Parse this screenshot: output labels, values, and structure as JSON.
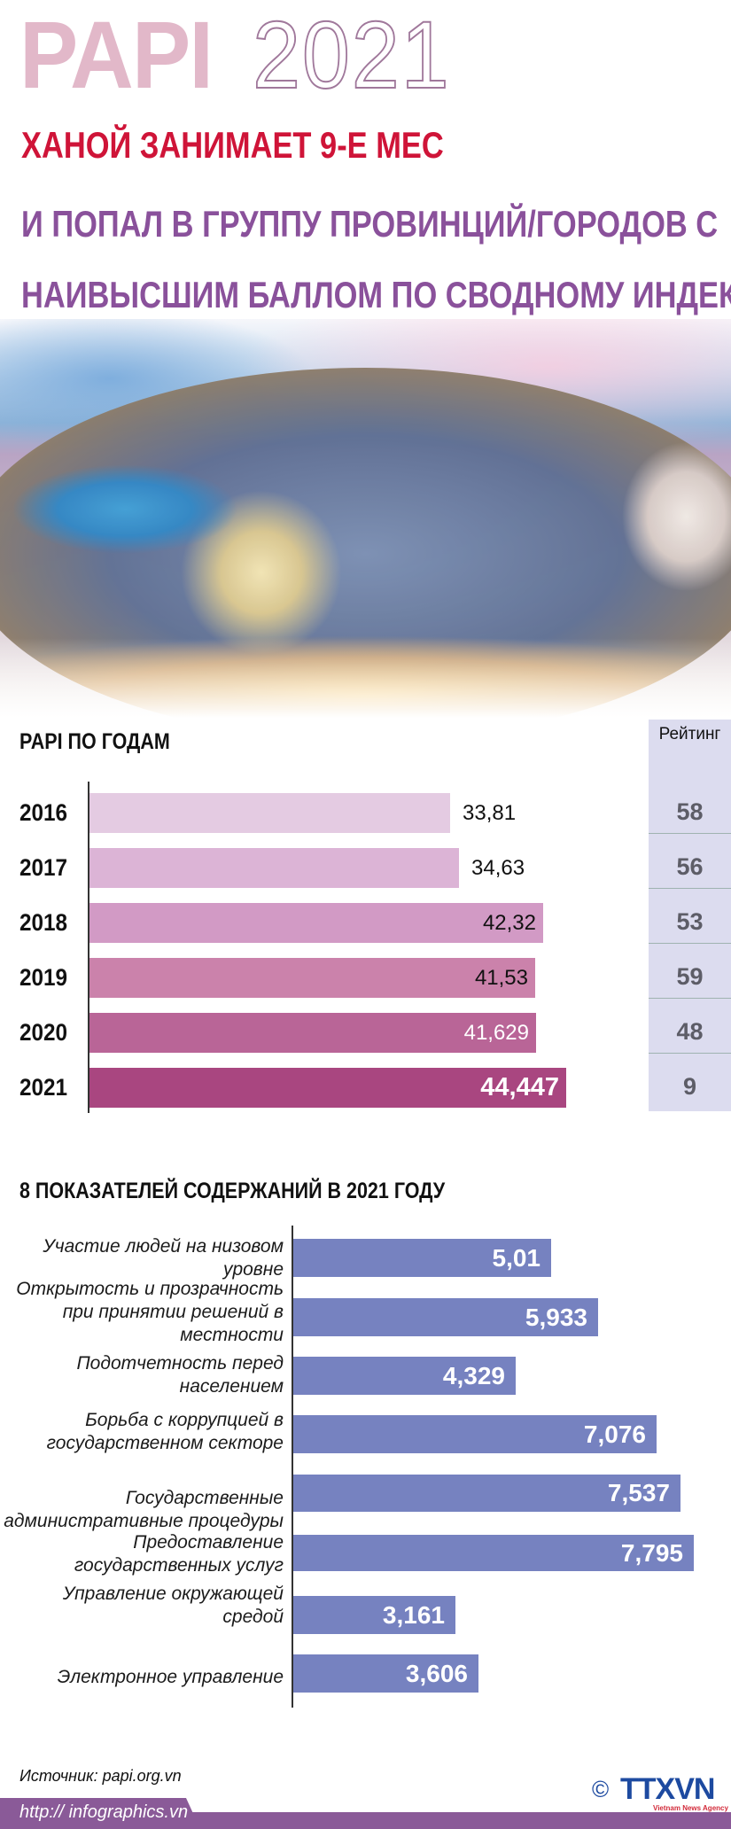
{
  "colors": {
    "papi_title": "#e2b8c9",
    "year_stroke": "#a0789b",
    "headline_red": "#cf1438",
    "headline_purple": "#8a519b",
    "chart2_bar": "#7682c0",
    "rating_bg": "#dcdcef",
    "footer": "#8a5a98"
  },
  "header": {
    "title_word": "PAPI",
    "title_year": "2021",
    "headline_line1": "ХАНОЙ ЗАНИМАЕТ 9-Е МЕС",
    "headline_line2": "И ПОПАЛ В ГРУППУ ПРОВИНЦИЙ/ГОРОДОВ С",
    "headline_line3": "НАИВЫСШИМ БАЛЛОМ ПО СВОДНОМУ ИНДЕКСУ"
  },
  "photo": {
    "description": "Aerial fisheye view of Hanoi city at dusk"
  },
  "chart1": {
    "title": "PAPI ПО ГОДАМ",
    "rating_header": "Рейтинг",
    "rows": [
      {
        "year": "2016",
        "value": "33,81",
        "rating": "58",
        "color": "#e4cbe2",
        "text_color": "#111111"
      },
      {
        "year": "2017",
        "value": "34,63",
        "rating": "56",
        "color": "#dcb4d6",
        "text_color": "#111111"
      },
      {
        "year": "2018",
        "value": "42,32",
        "rating": "53",
        "color": "#d29ac5",
        "text_color": "#111111"
      },
      {
        "year": "2019",
        "value": "41,53",
        "rating": "59",
        "color": "#cb82ab",
        "text_color": "#111111"
      },
      {
        "year": "2020",
        "value": "41,629",
        "rating": "48",
        "color": "#b96597",
        "text_color": "#ffffff"
      },
      {
        "year": "2021",
        "value": "44,447",
        "rating": "9",
        "color": "#a94680",
        "text_color": "#ffffff"
      }
    ]
  },
  "chart2": {
    "title": "8 ПОКАЗАТЕЛЕЙ СОДЕРЖАНИЙ В 2021 ГОДУ",
    "rows": [
      {
        "label": "Участие людей на низовом уровне",
        "value": "5,01"
      },
      {
        "label": "Открытость и прозрачность при принятии решений в местности",
        "value": "5,933"
      },
      {
        "label": "Подотчетность перед населением",
        "value": "4,329"
      },
      {
        "label": "Борьба с коррупцией в государственном секторе",
        "value": "7,076"
      },
      {
        "label": "Государственные административные процедуры",
        "value": "7,537"
      },
      {
        "label": "Предоставление государственных услуг",
        "value": "7,795"
      },
      {
        "label": "Управление окружающей средой",
        "value": "3,161"
      },
      {
        "label": "Электронное управление",
        "value": "3,606"
      }
    ]
  },
  "footer": {
    "source": "Источник: papi.org.vn",
    "url": "http:// infographics.vn",
    "copyright": "©",
    "logo": "TTXVN",
    "logo_sub": "Vietnam News Agency"
  },
  "chart_data": [
    {
      "type": "bar",
      "orientation": "horizontal",
      "title": "PAPI ПО ГОДАМ",
      "categories": [
        "2016",
        "2017",
        "2018",
        "2019",
        "2020",
        "2021"
      ],
      "values": [
        33.81,
        34.63,
        42.32,
        41.53,
        41.629,
        44.447
      ],
      "extra_column": {
        "name": "Рейтинг",
        "values": [
          58,
          56,
          53,
          59,
          48,
          9
        ]
      },
      "xlabel": "",
      "ylabel": "",
      "grid": false,
      "legend": null
    },
    {
      "type": "bar",
      "orientation": "horizontal",
      "title": "8 ПОКАЗАТЕЛЕЙ СОДЕРЖАНИЙ В 2021 ГОДУ",
      "categories": [
        "Участие людей на низовом уровне",
        "Открытость и прозрачность при принятии решений в местности",
        "Подотчетность перед населением",
        "Борьба с коррупцией в государственном секторе",
        "Государственные административные процедуры",
        "Предоставление государственных услуг",
        "Управление окружающей средой",
        "Электронное управление"
      ],
      "values": [
        5.01,
        5.933,
        4.329,
        7.076,
        7.537,
        7.795,
        3.161,
        3.606
      ],
      "xlabel": "",
      "ylabel": "",
      "grid": false,
      "legend": null
    }
  ]
}
